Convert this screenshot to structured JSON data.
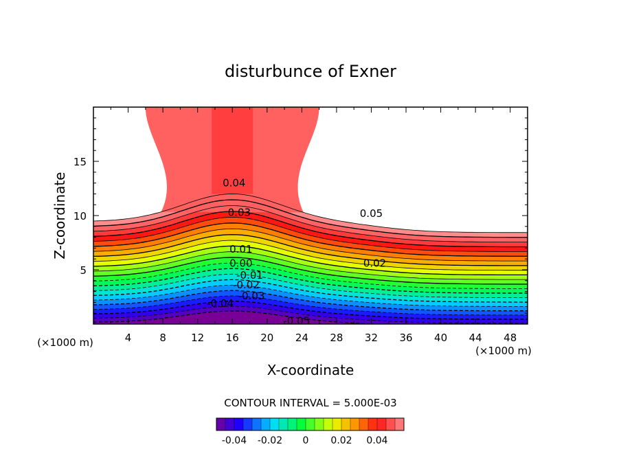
{
  "chart_data": {
    "type": "contour",
    "title": "disturbunce of Exner",
    "xlabel": "X-coordinate",
    "ylabel": "Z-coordinate",
    "x_unit": "(×1000 m)",
    "y_unit": "(×1000 m)",
    "xlim": [
      0,
      50
    ],
    "ylim": [
      0,
      20
    ],
    "x_ticks": [
      "4",
      "8",
      "12",
      "16",
      "20",
      "24",
      "28",
      "32",
      "36",
      "40",
      "44",
      "48"
    ],
    "y_ticks": [
      "5",
      "10",
      "15"
    ],
    "contour_interval_text": "CONTOUR INTERVAL = 5.000E-03",
    "levels_range": [
      -0.05,
      0.055
    ],
    "contour_labels": [
      {
        "text": "0.04",
        "x": 16.2,
        "z": 13.0
      },
      {
        "text": "0.03",
        "x": 16.8,
        "z": 10.3
      },
      {
        "text": "0.05",
        "x": 32.0,
        "z": 10.2
      },
      {
        "text": "0.01",
        "x": 17.0,
        "z": 6.9
      },
      {
        "text": "0.02",
        "x": 32.4,
        "z": 5.6
      },
      {
        "text": "0.00",
        "x": 17.0,
        "z": 5.6
      },
      {
        "text": "-0.01",
        "x": 18.0,
        "z": 4.5
      },
      {
        "text": "-0.02",
        "x": 17.6,
        "z": 3.6
      },
      {
        "text": "-0.03",
        "x": 18.2,
        "z": 2.6
      },
      {
        "text": "-0.04",
        "x": 14.6,
        "z": 1.9
      },
      {
        "text": "-0.05",
        "x": 23.4,
        "z": 0.3
      }
    ],
    "colorbar": {
      "ticks": [
        "-0.04",
        "-0.02",
        "0",
        "0.02",
        "0.04"
      ],
      "tick_values": [
        -0.04,
        -0.02,
        0,
        0.02,
        0.04
      ],
      "range": [
        -0.05,
        0.055
      ]
    }
  }
}
